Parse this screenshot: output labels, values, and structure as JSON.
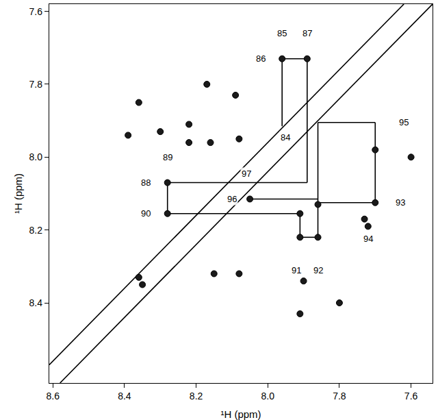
{
  "chart_data": {
    "type": "scatter",
    "x_label": "¹H (ppm)",
    "y_label": "¹H (ppm)",
    "xlim": [
      8.61,
      7.54
    ],
    "ylim": [
      8.62,
      7.58
    ],
    "xticks": [
      8.6,
      8.4,
      8.2,
      8.0,
      7.8,
      7.6
    ],
    "yticks": [
      7.6,
      7.8,
      8.0,
      8.2,
      8.4
    ],
    "grid": false,
    "series": [
      {
        "type": "line",
        "color": "#000000",
        "line_style": "solid",
        "x": [
          8.61,
          7.62,
          null,
          8.58,
          7.54
        ],
        "y": [
          8.57,
          7.58,
          null,
          8.62,
          7.58
        ]
      },
      {
        "type": "line",
        "color": "#000000",
        "line_style": "solid",
        "x": [
          7.96,
          7.96,
          null,
          7.96,
          7.89,
          null,
          7.89,
          7.89,
          null,
          8.28,
          7.89,
          null,
          8.28,
          7.91,
          null,
          8.28,
          8.28,
          null,
          7.91,
          7.91,
          null,
          7.91,
          7.86,
          null,
          7.86,
          7.86,
          null,
          8.05,
          7.86,
          null,
          7.86,
          7.7,
          null,
          7.7,
          7.7,
          null,
          7.86,
          7.7
        ],
        "y": [
          7.73,
          7.915,
          null,
          7.73,
          7.73,
          null,
          7.73,
          8.07,
          null,
          8.07,
          8.07,
          null,
          8.155,
          8.155,
          null,
          8.07,
          8.155,
          null,
          8.155,
          8.22,
          null,
          8.22,
          8.22,
          null,
          7.905,
          8.22,
          null,
          8.115,
          8.115,
          null,
          8.125,
          8.125,
          null,
          7.905,
          8.125,
          null,
          7.905,
          7.905
        ]
      },
      {
        "type": "scatter",
        "color": "#1a1a1a",
        "marker": "ellipse",
        "x": [
          7.96,
          7.89,
          8.28,
          8.28,
          8.05,
          7.91,
          7.91,
          7.86,
          7.86,
          7.7,
          7.7,
          7.72,
          8.39,
          8.36,
          8.3,
          8.22,
          8.22,
          8.17,
          8.16,
          8.09,
          8.08,
          8.15,
          8.08,
          7.9,
          7.91,
          7.8,
          7.73,
          7.6,
          8.36,
          8.35
        ],
        "y": [
          7.73,
          7.73,
          8.07,
          8.155,
          8.115,
          8.155,
          8.22,
          8.13,
          8.22,
          8.125,
          7.98,
          8.19,
          7.94,
          7.85,
          7.93,
          7.91,
          7.96,
          7.8,
          7.96,
          7.83,
          7.95,
          8.32,
          8.32,
          8.34,
          8.43,
          8.4,
          8.17,
          8.0,
          8.33,
          8.35
        ]
      }
    ],
    "annotations": [
      {
        "text": "85",
        "x": 7.96,
        "y": 7.66
      },
      {
        "text": "87",
        "x": 7.89,
        "y": 7.66
      },
      {
        "text": "86",
        "x": 8.02,
        "y": 7.73
      },
      {
        "text": "84",
        "x": 7.95,
        "y": 7.945
      },
      {
        "text": "89",
        "x": 8.28,
        "y": 8.0
      },
      {
        "text": "88",
        "x": 8.34,
        "y": 8.07
      },
      {
        "text": "90",
        "x": 8.34,
        "y": 8.155
      },
      {
        "text": "97",
        "x": 8.06,
        "y": 8.045
      },
      {
        "text": "96",
        "x": 8.1,
        "y": 8.115
      },
      {
        "text": "91",
        "x": 7.92,
        "y": 8.31
      },
      {
        "text": "92",
        "x": 7.86,
        "y": 8.31
      },
      {
        "text": "93",
        "x": 7.63,
        "y": 8.125
      },
      {
        "text": "94",
        "x": 7.72,
        "y": 8.225
      },
      {
        "text": "95",
        "x": 7.62,
        "y": 7.905
      }
    ]
  }
}
